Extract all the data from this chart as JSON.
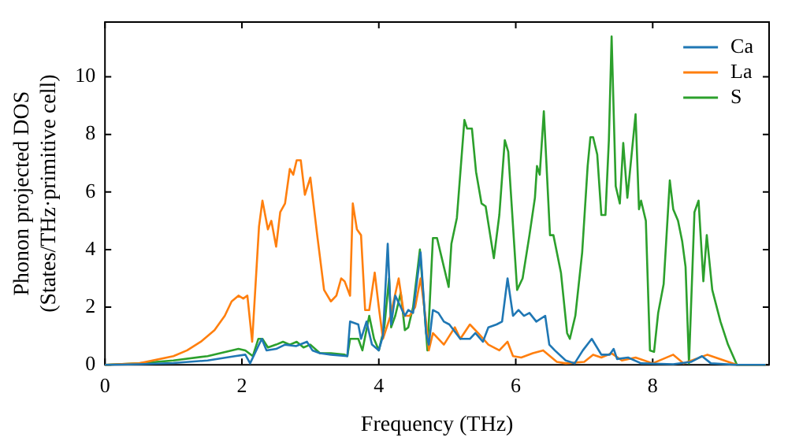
{
  "chart_data": {
    "type": "line",
    "xlabel": "Frequency (THz)",
    "ylabel": "Phonon projected DOS\n(States/THz·primitive cell)",
    "xlim": [
      0,
      9.7
    ],
    "ylim": [
      0,
      11.9
    ],
    "xticks": [
      0,
      2,
      4,
      6,
      8
    ],
    "yticks": [
      0,
      2,
      4,
      6,
      8,
      10
    ],
    "legend": "top right",
    "marker": "none",
    "line_style": "solid",
    "series": [
      {
        "name": "Ca",
        "color": "#1f77b4",
        "x": [
          0,
          0.5,
          1,
          1.5,
          1.9,
          2.05,
          2.12,
          2.29,
          2.36,
          2.5,
          2.63,
          2.79,
          2.95,
          3.03,
          3.14,
          3.3,
          3.54,
          3.58,
          3.7,
          3.74,
          3.82,
          3.9,
          4.0,
          4.06,
          4.13,
          4.18,
          4.24,
          4.32,
          4.38,
          4.43,
          4.5,
          4.61,
          4.69,
          4.73,
          4.79,
          4.87,
          4.95,
          5.03,
          5.19,
          5.33,
          5.41,
          5.52,
          5.6,
          5.72,
          5.8,
          5.88,
          5.96,
          6.04,
          6.12,
          6.2,
          6.3,
          6.43,
          6.49,
          6.57,
          6.73,
          6.86,
          6.98,
          7.11,
          7.25,
          7.37,
          7.43,
          7.48,
          7.64,
          7.83,
          8.3,
          8.56,
          8.72,
          8.85,
          9.23,
          9.65
        ],
        "values": [
          0,
          0.02,
          0.06,
          0.15,
          0.3,
          0.35,
          0.05,
          0.9,
          0.5,
          0.55,
          0.7,
          0.65,
          0.8,
          0.5,
          0.4,
          0.35,
          0.3,
          1.5,
          1.4,
          0.9,
          1.5,
          0.7,
          0.5,
          1.0,
          4.2,
          1.4,
          2.4,
          2.0,
          1.7,
          1.9,
          1.8,
          3.9,
          1.1,
          0.7,
          1.9,
          1.8,
          1.5,
          1.4,
          0.9,
          0.9,
          1.1,
          0.8,
          1.3,
          1.4,
          1.5,
          3.0,
          1.7,
          1.9,
          1.7,
          1.8,
          1.5,
          1.7,
          0.7,
          0.5,
          0.15,
          0.05,
          0.5,
          0.9,
          0.35,
          0.35,
          0.55,
          0.2,
          0.25,
          0.05,
          0.02,
          0.1,
          0.3,
          0.05,
          0,
          0
        ]
      },
      {
        "name": "La",
        "color": "#ff7f0e",
        "x": [
          0,
          0.5,
          1,
          1.2,
          1.4,
          1.6,
          1.75,
          1.85,
          1.95,
          2.02,
          2.08,
          2.15,
          2.25,
          2.3,
          2.38,
          2.43,
          2.5,
          2.56,
          2.63,
          2.7,
          2.75,
          2.8,
          2.86,
          2.92,
          3.0,
          3.1,
          3.2,
          3.3,
          3.38,
          3.45,
          3.5,
          3.58,
          3.62,
          3.68,
          3.74,
          3.8,
          3.86,
          3.94,
          4.0,
          4.06,
          4.17,
          4.29,
          4.37,
          4.45,
          4.53,
          4.61,
          4.69,
          4.73,
          4.79,
          4.95,
          5.11,
          5.19,
          5.33,
          5.45,
          5.6,
          5.76,
          5.88,
          5.96,
          6.08,
          6.25,
          6.4,
          6.6,
          6.73,
          7.0,
          7.13,
          7.25,
          7.4,
          7.55,
          7.75,
          8.0,
          8.3,
          8.45,
          8.8,
          9.23,
          9.65
        ],
        "values": [
          0,
          0.05,
          0.3,
          0.5,
          0.8,
          1.2,
          1.7,
          2.2,
          2.4,
          2.3,
          2.4,
          0.8,
          4.8,
          5.7,
          4.7,
          5.0,
          4.1,
          5.3,
          5.6,
          6.8,
          6.6,
          7.1,
          7.1,
          5.9,
          6.5,
          4.5,
          2.6,
          2.2,
          2.4,
          3.0,
          2.9,
          2.4,
          5.6,
          4.7,
          4.5,
          1.9,
          1.9,
          3.2,
          2.0,
          0.9,
          1.7,
          3.0,
          1.7,
          1.7,
          2.0,
          3.0,
          1.5,
          0.5,
          1.1,
          0.7,
          1.3,
          0.9,
          1.4,
          1.1,
          0.7,
          0.5,
          0.8,
          0.3,
          0.25,
          0.4,
          0.5,
          0.1,
          0.05,
          0.1,
          0.35,
          0.25,
          0.4,
          0.15,
          0.25,
          0.05,
          0.35,
          0.05,
          0.35,
          0,
          0
        ]
      },
      {
        "name": "S",
        "color": "#2ca02c",
        "x": [
          0,
          0.5,
          1,
          1.5,
          1.95,
          2.05,
          2.16,
          2.24,
          2.3,
          2.38,
          2.5,
          2.6,
          2.7,
          2.8,
          2.9,
          3.0,
          3.14,
          3.3,
          3.5,
          3.54,
          3.58,
          3.7,
          3.76,
          3.86,
          3.93,
          4.0,
          4.08,
          4.15,
          4.18,
          4.24,
          4.32,
          4.38,
          4.43,
          4.5,
          4.6,
          4.65,
          4.71,
          4.79,
          4.85,
          4.92,
          5.02,
          5.06,
          5.14,
          5.25,
          5.29,
          5.36,
          5.42,
          5.5,
          5.56,
          5.68,
          5.76,
          5.84,
          5.89,
          6.02,
          6.1,
          6.2,
          6.28,
          6.31,
          6.35,
          6.41,
          6.5,
          6.55,
          6.66,
          6.75,
          6.79,
          6.87,
          6.97,
          7.05,
          7.09,
          7.13,
          7.19,
          7.25,
          7.31,
          7.36,
          7.4,
          7.46,
          7.52,
          7.57,
          7.63,
          7.75,
          7.8,
          7.83,
          7.9,
          7.96,
          8.02,
          8.08,
          8.16,
          8.25,
          8.3,
          8.37,
          8.43,
          8.48,
          8.53,
          8.61,
          8.67,
          8.74,
          8.79,
          8.87,
          8.99,
          9.1,
          9.23,
          9.65
        ],
        "values": [
          0,
          0.05,
          0.15,
          0.3,
          0.55,
          0.5,
          0.3,
          0.9,
          0.9,
          0.6,
          0.7,
          0.8,
          0.7,
          0.8,
          0.6,
          0.7,
          0.4,
          0.4,
          0.35,
          0.3,
          0.9,
          0.9,
          0.5,
          1.7,
          0.9,
          0.5,
          1.3,
          3.0,
          1.3,
          1.7,
          2.5,
          1.2,
          1.3,
          2.0,
          4.0,
          2.4,
          0.5,
          4.4,
          4.4,
          3.7,
          2.7,
          4.2,
          5.1,
          8.5,
          8.2,
          8.2,
          6.7,
          5.6,
          5.5,
          3.7,
          5.2,
          7.8,
          7.4,
          2.6,
          3.0,
          4.5,
          5.8,
          6.9,
          6.6,
          8.8,
          4.5,
          4.5,
          3.2,
          1.1,
          0.9,
          1.7,
          3.9,
          6.9,
          7.9,
          7.9,
          7.3,
          5.2,
          5.2,
          7.8,
          11.4,
          6.2,
          5.6,
          7.7,
          5.8,
          8.7,
          5.4,
          5.7,
          5.0,
          0.5,
          0.45,
          1.8,
          2.8,
          6.4,
          5.4,
          5.0,
          4.3,
          3.4,
          0.05,
          5.3,
          5.7,
          2.9,
          4.5,
          2.6,
          1.5,
          0.7,
          0,
          0
        ]
      }
    ]
  }
}
